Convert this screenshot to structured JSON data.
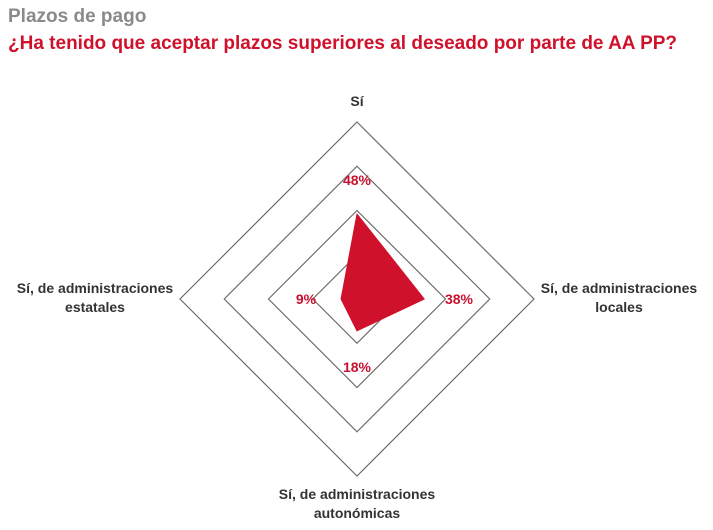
{
  "header": {
    "title": "Plazos de pago",
    "subtitle": "¿Ha tenido que aceptar plazos superiores al deseado por parte de AA PP?"
  },
  "colors": {
    "title": "#8a8a8a",
    "subtitle": "#d0112b",
    "series_fill": "#d0112b",
    "value_label": "#c8102e",
    "grid": "#6e6e6e"
  },
  "chart_data": {
    "type": "radar",
    "axes": [
      "Sí",
      "Sí, de administraciones locales",
      "Sí, de administraciones autonómicas",
      "Sí, de administraciones estatales"
    ],
    "axis_label_lines": [
      [
        "Sí"
      ],
      [
        "Sí, de administraciones",
        "locales"
      ],
      [
        "Sí, de administraciones",
        "autonómicas"
      ],
      [
        "Sí, de administraciones",
        "estatales"
      ]
    ],
    "values": [
      48,
      38,
      18,
      9
    ],
    "value_labels": [
      "48%",
      "38%",
      "18%",
      "9%"
    ],
    "unit": "%",
    "rmax": 100,
    "gridlines": [
      25,
      50,
      75,
      100
    ],
    "grid": true,
    "legend": "none"
  }
}
